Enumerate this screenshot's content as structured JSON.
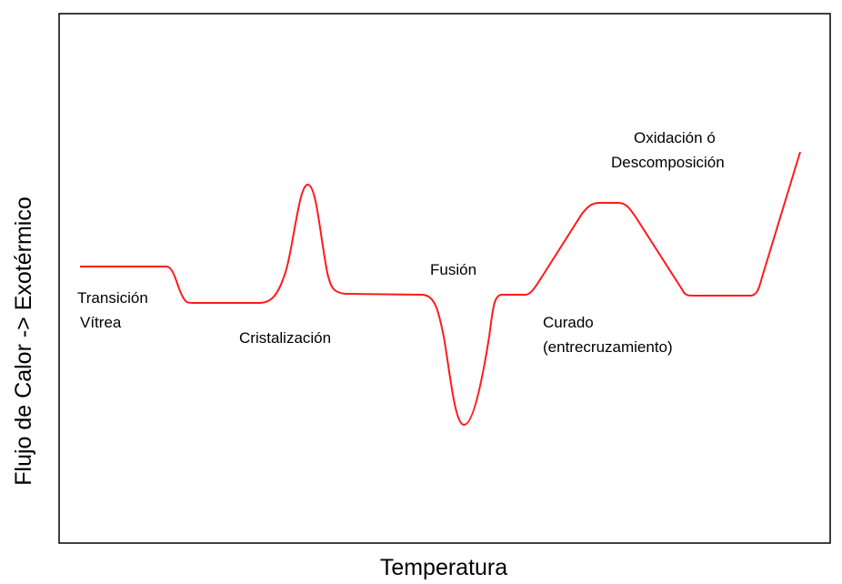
{
  "x_label": "Temperatura",
  "y_label": "Flujo de Calor -> Exotérmico",
  "annotations": [
    {
      "lines": [
        "Transición",
        "Vítrea"
      ]
    },
    {
      "lines": [
        "Cristalización"
      ]
    },
    {
      "lines": [
        "Fusión"
      ]
    },
    {
      "lines": [
        "Curado",
        "(entrecruzamiento)"
      ]
    },
    {
      "lines": [
        "Oxidación ó",
        "Descomposición"
      ]
    }
  ]
}
